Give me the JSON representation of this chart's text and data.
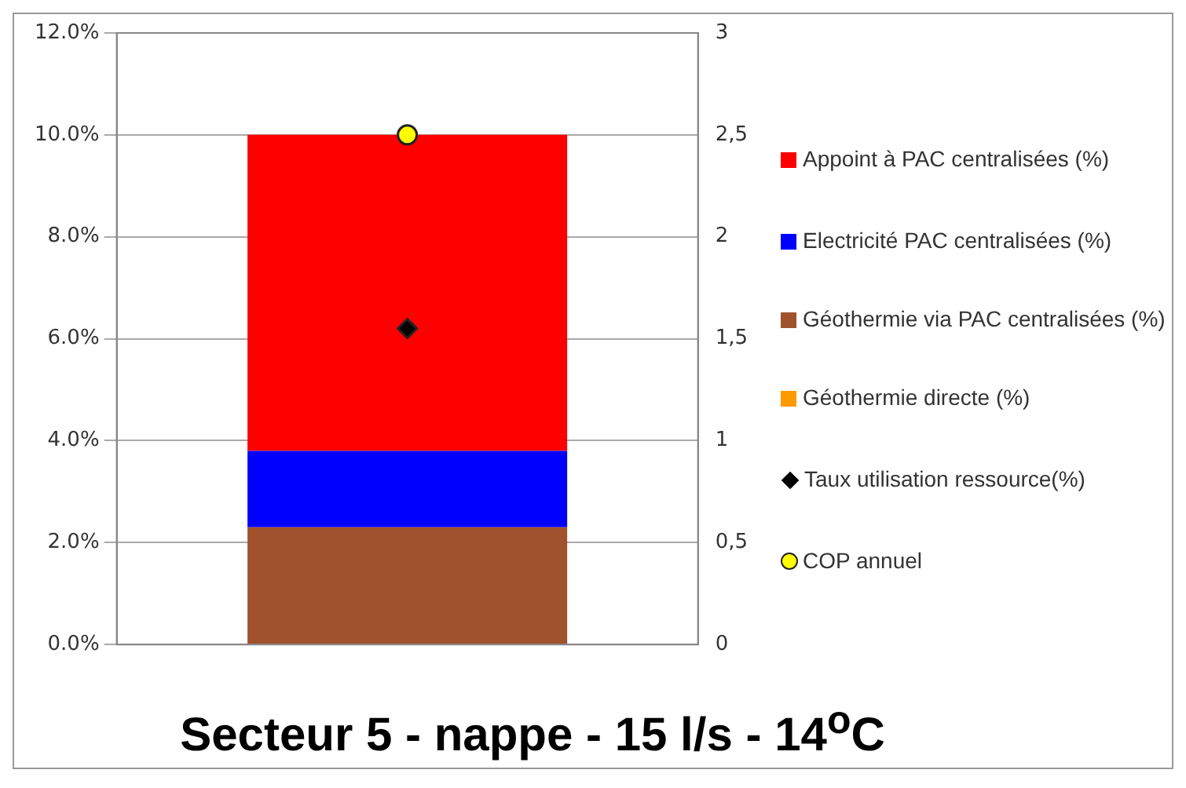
{
  "chart_data": {
    "type": "bar",
    "title": "Secteur 5 - nappe - 15 l/s - 14$^{o}$C",
    "categories": [
      null
    ],
    "stacked": true,
    "series": [
      {
        "name": "Géothermie directe (%)",
        "color": "#ff9900",
        "values": [
          0
        ]
      },
      {
        "name": "Géothermie via PAC centralisées (%)",
        "color": "#a0522d",
        "values": [
          2.3
        ]
      },
      {
        "name": "Electricité PAC centralisées (%)",
        "color": "#0000ff",
        "values": [
          1.5
        ]
      },
      {
        "name": "Appoint à PAC centralisées (%)",
        "color": "#ff0000",
        "values": [
          6.2
        ]
      },
      {
        "name": "Taux utilisation ressource(%)",
        "type": "scatter",
        "marker": "diamond",
        "color": "#000000",
        "values": [
          6.2
        ]
      },
      {
        "name": "COP annuel",
        "type": "scatter",
        "marker": "circle",
        "color": "#ffff00",
        "axis": "y2",
        "values": [
          2.5
        ]
      }
    ],
    "ylim": [
      0,
      12
    ],
    "yticks": [
      {
        "value": 0,
        "label": "0.0%"
      },
      {
        "value": 2,
        "label": "2.0%"
      },
      {
        "value": 4,
        "label": "4.0%"
      },
      {
        "value": 6,
        "label": "6.0%"
      },
      {
        "value": 8,
        "label": "8.0%"
      },
      {
        "value": 10,
        "label": "10.0%"
      },
      {
        "value": 12,
        "label": "12.0%"
      }
    ],
    "y2lim": [
      0,
      3
    ],
    "y2ticks": [
      0,
      {
        "value": 0.5,
        "label": "0,5"
      },
      1,
      {
        "value": 1.5,
        "label": "1,5"
      },
      2,
      {
        "value": 2.5,
        "label": "2,5"
      },
      3
    ],
    "grid": "y",
    "legend": "right"
  }
}
